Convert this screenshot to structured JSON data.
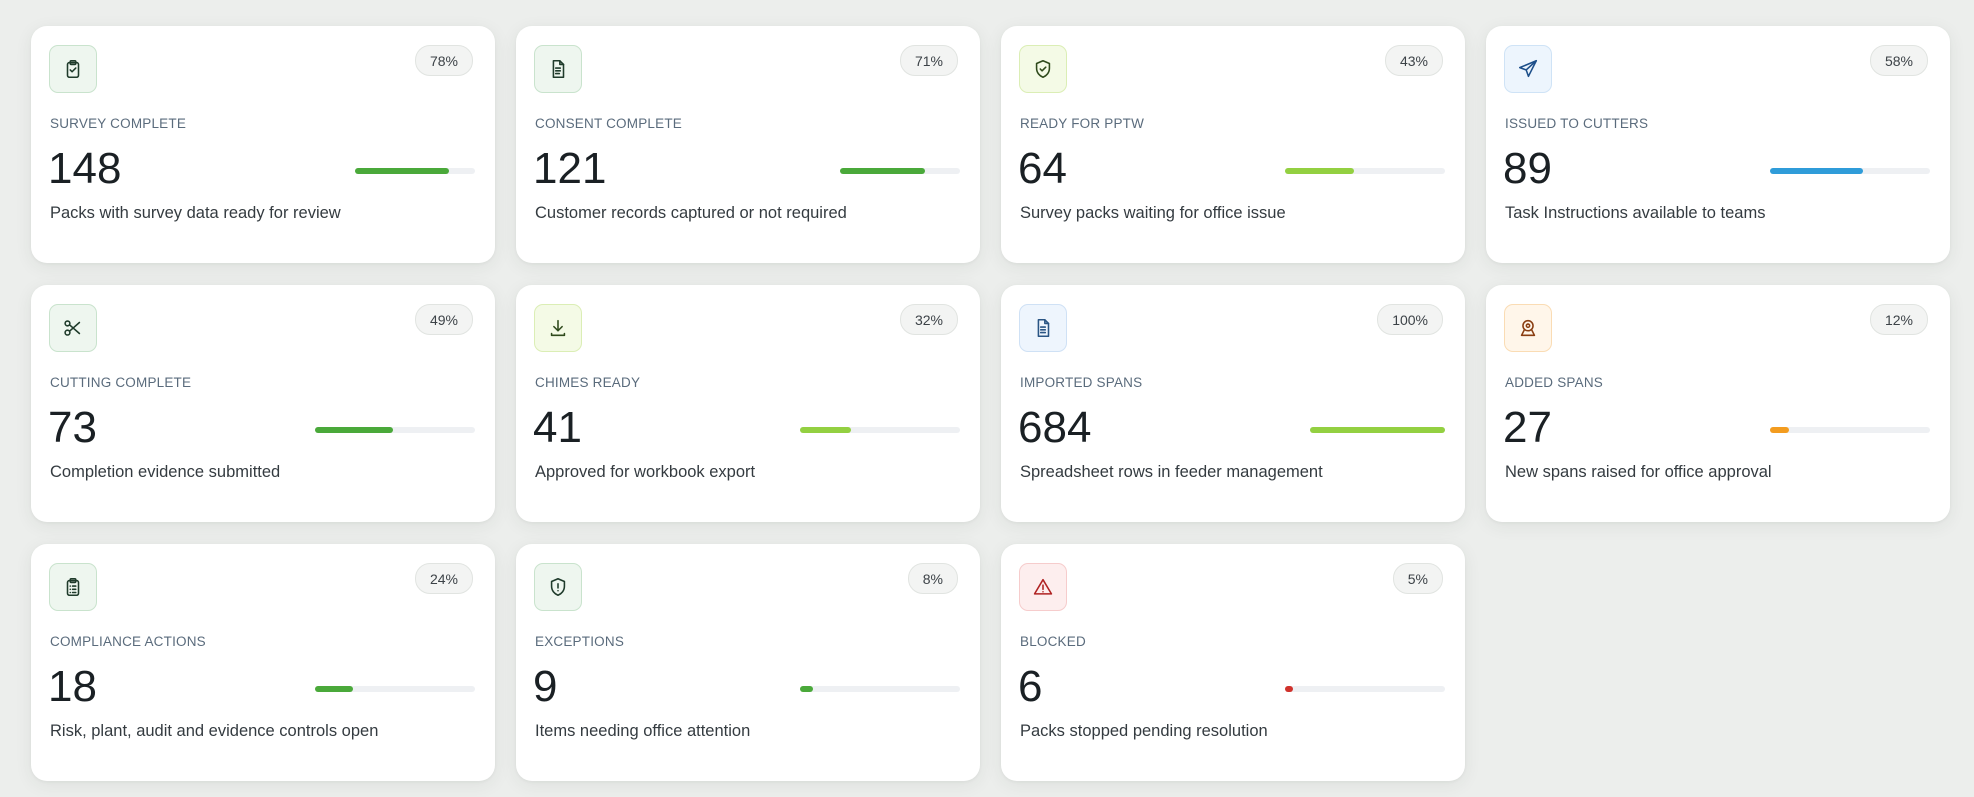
{
  "cards": [
    {
      "key": "survey-complete",
      "label": "Survey complete",
      "value": "148",
      "description": "Packs with survey data ready for review",
      "percent_label": "78%",
      "progress": 0.78,
      "icon": "clipboard-check-icon",
      "tone": "green"
    },
    {
      "key": "consent-complete",
      "label": "Consent complete",
      "value": "121",
      "description": "Customer records captured or not required",
      "percent_label": "71%",
      "progress": 0.71,
      "icon": "document-icon",
      "tone": "green"
    },
    {
      "key": "ready-for-pptw",
      "label": "Ready for PPTW",
      "value": "64",
      "description": "Survey packs waiting for office issue",
      "percent_label": "43%",
      "progress": 0.43,
      "icon": "shield-check-icon",
      "tone": "lime"
    },
    {
      "key": "issued-to-cutters",
      "label": "Issued to cutters",
      "value": "89",
      "description": "Task Instructions available to teams",
      "percent_label": "58%",
      "progress": 0.58,
      "icon": "send-icon",
      "tone": "blue"
    },
    {
      "key": "cutting-complete",
      "label": "Cutting complete",
      "value": "73",
      "description": "Completion evidence submitted",
      "percent_label": "49%",
      "progress": 0.49,
      "icon": "scissors-icon",
      "tone": "green"
    },
    {
      "key": "chimes-ready",
      "label": "Chimes ready",
      "value": "41",
      "description": "Approved for workbook export",
      "percent_label": "32%",
      "progress": 0.32,
      "icon": "download-icon",
      "tone": "lime"
    },
    {
      "key": "imported-spans",
      "label": "Imported spans",
      "value": "684",
      "description": "Spreadsheet rows in feeder management",
      "percent_label": "100%",
      "progress": 1.0,
      "icon": "spreadsheet-icon",
      "tone": "lightblue"
    },
    {
      "key": "added-spans",
      "label": "Added spans",
      "value": "27",
      "description": "New spans raised for office approval",
      "percent_label": "12%",
      "progress": 0.12,
      "icon": "map-pin-icon",
      "tone": "orange"
    },
    {
      "key": "compliance-actions",
      "label": "Compliance actions",
      "value": "18",
      "description": "Risk, plant, audit and evidence controls open",
      "percent_label": "24%",
      "progress": 0.24,
      "icon": "clipboard-list-icon",
      "tone": "green"
    },
    {
      "key": "exceptions",
      "label": "Exceptions",
      "value": "9",
      "description": "Items needing office attention",
      "percent_label": "8%",
      "progress": 0.08,
      "icon": "shield-alert-icon",
      "tone": "green"
    },
    {
      "key": "blocked",
      "label": "Blocked",
      "value": "6",
      "description": "Packs stopped pending resolution",
      "percent_label": "5%",
      "progress": 0.05,
      "icon": "warning-triangle-icon",
      "tone": "red"
    }
  ],
  "tones": {
    "green": {
      "bar": "#4aa93a",
      "icon_bg": "#eef6ef",
      "icon_border": "#c9e3cd",
      "icon_stroke": "#1f3b2b"
    },
    "lime": {
      "bar": "#93d041",
      "icon_bg": "#f4fae6",
      "icon_border": "#dbeeb5",
      "icon_stroke": "#2f4a1c"
    },
    "blue": {
      "bar": "#2f9cd9",
      "icon_bg": "#edf5fd",
      "icon_border": "#cfe3f6",
      "icon_stroke": "#1d4f8a"
    },
    "lightblue": {
      "bar": "#93d041",
      "icon_bg": "#eef5fd",
      "icon_border": "#cfe1f5",
      "icon_stroke": "#2a5584"
    },
    "orange": {
      "bar": "#f39c1f",
      "icon_bg": "#fff6ea",
      "icon_border": "#fadcb4",
      "icon_stroke": "#8a3e12"
    },
    "red": {
      "bar": "#d0322c",
      "icon_bg": "#fdeeee",
      "icon_border": "#f6cccc",
      "icon_stroke": "#b02323"
    }
  }
}
